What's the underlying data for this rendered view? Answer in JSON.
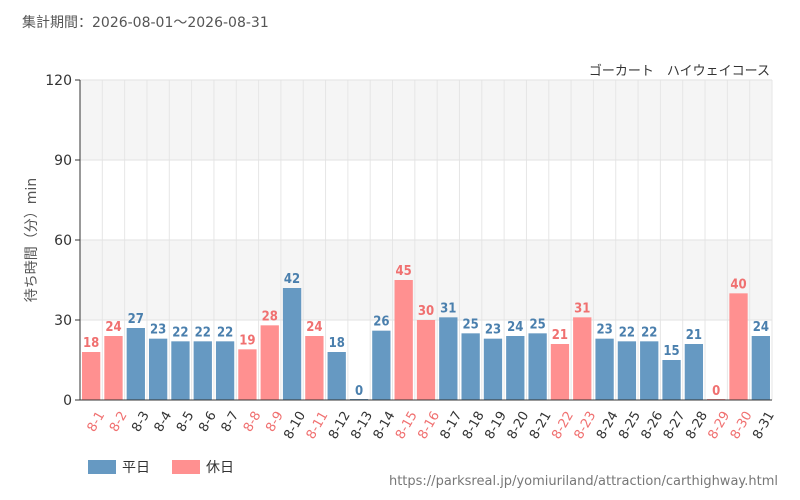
{
  "header": {
    "period": "集計期間：2026-08-01～2026-08-31",
    "attraction": "ゴーカート　ハイウェイコース"
  },
  "legend": {
    "weekday_label": "平日",
    "holiday_label": "休日"
  },
  "footer": {
    "source_url": "https://parksreal.jp/yomiuriland/attraction/carthighway.html"
  },
  "colors": {
    "weekday": "#6699c2",
    "holiday": "#ff9090",
    "weekday_text": "#4a7fad",
    "holiday_text": "#f07070"
  },
  "chart_data": {
    "type": "bar",
    "ylabel": "待ち時間（分）min",
    "ylim": [
      0,
      120
    ],
    "yticks": [
      0,
      30,
      60,
      90,
      120
    ],
    "categories": [
      "8-1",
      "8-2",
      "8-3",
      "8-4",
      "8-5",
      "8-6",
      "8-7",
      "8-8",
      "8-9",
      "8-10",
      "8-11",
      "8-12",
      "8-13",
      "8-14",
      "8-15",
      "8-16",
      "8-17",
      "8-18",
      "8-19",
      "8-20",
      "8-21",
      "8-22",
      "8-23",
      "8-24",
      "8-25",
      "8-26",
      "8-27",
      "8-28",
      "8-29",
      "8-30",
      "8-31"
    ],
    "values": [
      18,
      24,
      27,
      23,
      22,
      22,
      22,
      19,
      28,
      42,
      24,
      18,
      0,
      26,
      45,
      30,
      31,
      25,
      23,
      24,
      25,
      21,
      31,
      23,
      22,
      22,
      15,
      21,
      0,
      40,
      24
    ],
    "day_type": [
      "holiday",
      "holiday",
      "weekday",
      "weekday",
      "weekday",
      "weekday",
      "weekday",
      "holiday",
      "holiday",
      "weekday",
      "holiday",
      "weekday",
      "weekday",
      "weekday",
      "holiday",
      "holiday",
      "weekday",
      "weekday",
      "weekday",
      "weekday",
      "weekday",
      "holiday",
      "holiday",
      "weekday",
      "weekday",
      "weekday",
      "weekday",
      "weekday",
      "holiday",
      "holiday",
      "weekday"
    ],
    "series": [
      {
        "name": "平日",
        "type": "weekday"
      },
      {
        "name": "休日",
        "type": "holiday"
      }
    ],
    "grid": true,
    "legend_position": "bottom-left"
  }
}
